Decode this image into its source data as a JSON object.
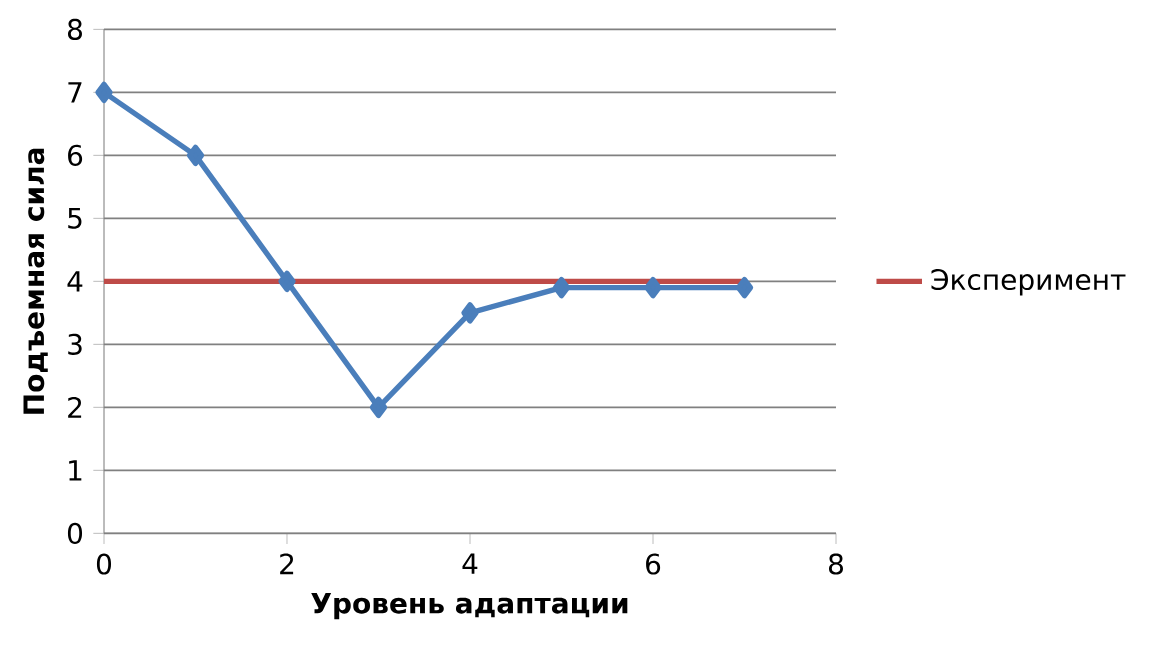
{
  "chart_data": {
    "type": "line",
    "xlabel": "Уровень адаптации",
    "ylabel": "Подъемная сила",
    "x": [
      0,
      1,
      2,
      3,
      4,
      5,
      6,
      7
    ],
    "series": [
      {
        "color": "#4a7ebb",
        "marker": "diamond",
        "values": [
          7,
          6,
          4,
          2,
          3.5,
          3.9,
          3.9,
          3.9
        ]
      },
      {
        "name": "Эксперимент",
        "color": "#be4b48",
        "marker": "none",
        "values": [
          4,
          4,
          4,
          4,
          4,
          4,
          4,
          4
        ]
      }
    ],
    "xlim": [
      0,
      8
    ],
    "xticks": [
      0,
      2,
      4,
      6,
      8
    ],
    "ylim": [
      0,
      8
    ],
    "yticks": [
      0,
      1,
      2,
      3,
      4,
      5,
      6,
      7,
      8
    ],
    "grid": "y",
    "legend": "right"
  }
}
